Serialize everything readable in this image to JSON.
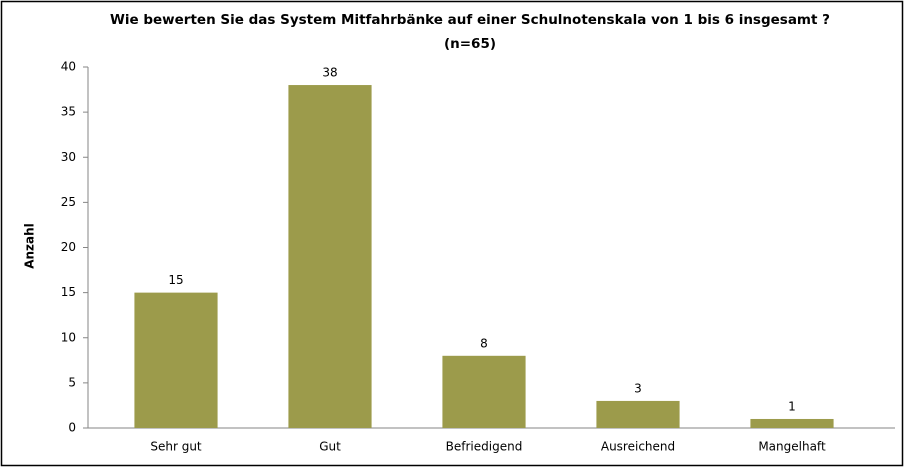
{
  "chart_data": {
    "type": "bar",
    "title": "Wie bewerten Sie das System Mitfahrbänke auf einer Schulnotenskala von 1 bis 6 insgesamt ?",
    "subtitle": "(n=65)",
    "y_label": "Anzahl",
    "categories": [
      "Sehr gut",
      "Gut",
      "Befriedigend",
      "Ausreichend",
      "Mangelhaft"
    ],
    "values": [
      15,
      38,
      8,
      3,
      1
    ],
    "color": "#9c9b4b",
    "ylim": [
      0,
      40
    ],
    "yticks": [
      0,
      5,
      10,
      15,
      20,
      25,
      30,
      35,
      40
    ],
    "grid": false
  }
}
